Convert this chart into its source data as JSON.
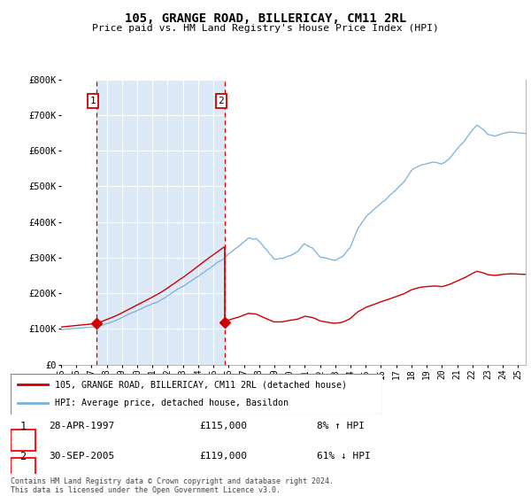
{
  "title": "105, GRANGE ROAD, BILLERICAY, CM11 2RL",
  "subtitle": "Price paid vs. HM Land Registry's House Price Index (HPI)",
  "legend_line1": "105, GRANGE ROAD, BILLERICAY, CM11 2RL (detached house)",
  "legend_line2": "HPI: Average price, detached house, Basildon",
  "transaction1_date": "28-APR-1997",
  "transaction1_price": 115000,
  "transaction1_hpi": "8% ↑ HPI",
  "transaction2_date": "30-SEP-2005",
  "transaction2_price": 119000,
  "transaction2_hpi": "61% ↓ HPI",
  "footnote": "Contains HM Land Registry data © Crown copyright and database right 2024.\nThis data is licensed under the Open Government Licence v3.0.",
  "hpi_color": "#7ab0d8",
  "price_color": "#cc0000",
  "bg_color": "#dce8f5",
  "grid_color": "#ffffff",
  "vline_color": "#cc0000",
  "ylim_max": 800000,
  "xlim_start": 1995.0,
  "xlim_end": 2025.5,
  "t1_year": 1997.33,
  "t2_year": 2005.75
}
